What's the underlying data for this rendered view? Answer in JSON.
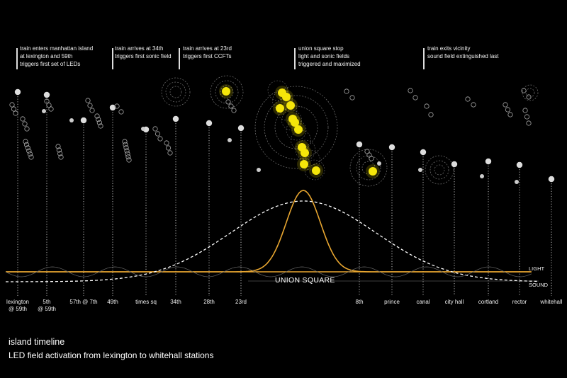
{
  "annotations": [
    {
      "text": "train enters manhattan island\nat lexington and 59th\ntriggers first set of LEDs"
    },
    {
      "text": "train arrives at 34th\ntriggers first sonic field"
    },
    {
      "text": "train arrives at 23rd\ntriggers first CCFTs"
    },
    {
      "text": "union square stop\nlight and sonic fields\ntriggered and maximized"
    },
    {
      "text": "train exits vicinity\nsound field extinguished last"
    }
  ],
  "stations": [
    {
      "label": "lexington\n@ 59th"
    },
    {
      "label": "5th\n@ 59th"
    },
    {
      "label": "57th @ 7th"
    },
    {
      "label": "49th"
    },
    {
      "label": "times sq"
    },
    {
      "label": "34th"
    },
    {
      "label": "28th"
    },
    {
      "label": "23rd"
    },
    {
      "label": "8th"
    },
    {
      "label": "prince"
    },
    {
      "label": "canal"
    },
    {
      "label": "city hall"
    },
    {
      "label": "cortland"
    },
    {
      "label": "rector"
    },
    {
      "label": "whitehall"
    }
  ],
  "center_label": "UNION SQUARE",
  "curve_labels": {
    "light": "LIGHT",
    "sound": "SOUND"
  },
  "caption": {
    "title": "island timeline",
    "subtitle": "LED field activation from lexington to whitehall stations"
  },
  "colors": {
    "light_curve": "#e8a630",
    "led_on": "#f5e60a",
    "sound_curve": "#ffffff",
    "background": "#000000"
  }
}
